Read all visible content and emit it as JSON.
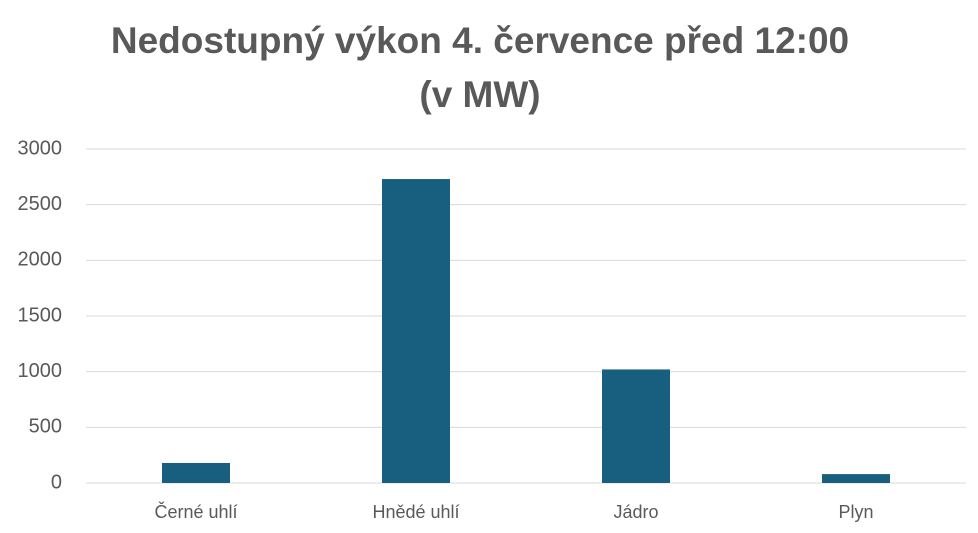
{
  "chart_data": {
    "type": "bar",
    "title": "Nedostupný výkon 4. července před 12:00 (v MW)",
    "categories": [
      "Černé uhlí",
      "Hnědé uhlí",
      "Jádro",
      "Plyn"
    ],
    "values": [
      180,
      2730,
      1020,
      80
    ],
    "color": "#175e7f",
    "ylim": [
      0,
      3000
    ],
    "yticks": [
      0,
      500,
      1000,
      1500,
      2000,
      2500,
      3000
    ],
    "grid": true
  }
}
